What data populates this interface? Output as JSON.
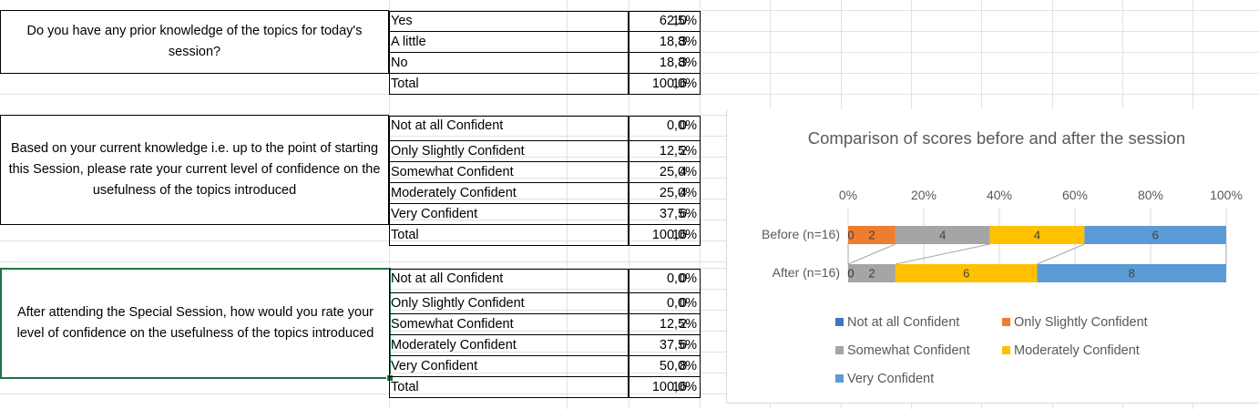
{
  "q1": {
    "question": "Do you have any prior knowledge of the topics for today's session?",
    "rows": [
      {
        "label": "Yes",
        "count": "10",
        "pct": "62,5%"
      },
      {
        "label": "A little",
        "count": "3",
        "pct": "18,8%"
      },
      {
        "label": "No",
        "count": "3",
        "pct": "18,8%"
      },
      {
        "label": "Total",
        "count": "16",
        "pct": "100,0%"
      }
    ]
  },
  "q2": {
    "question": "Based on your current knowledge i.e. up to the point of starting this Session, please rate your current level of confidence on the usefulness of the topics introduced",
    "rows": [
      {
        "label": "Not at all Confident",
        "count": "0",
        "pct": "0,0%"
      },
      {
        "label": "Only Slightly Confident",
        "count": "2",
        "pct": "12,5%"
      },
      {
        "label": "Somewhat Confident",
        "count": "4",
        "pct": "25,0%"
      },
      {
        "label": "Moderately Confident",
        "count": "4",
        "pct": "25,0%"
      },
      {
        "label": "Very Confident",
        "count": "6",
        "pct": "37,5%"
      },
      {
        "label": "Total",
        "count": "16",
        "pct": "100,0%"
      }
    ]
  },
  "q3": {
    "question": "After attending the Special Session, how would you rate your level of confidence on the usefulness of the topics introduced",
    "rows": [
      {
        "label": "Not at all Confident",
        "count": "0",
        "pct": "0,0%"
      },
      {
        "label": "Only Slightly Confident",
        "count": "0",
        "pct": "0,0%"
      },
      {
        "label": "Somewhat Confident",
        "count": "2",
        "pct": "12,5%"
      },
      {
        "label": "Moderately Confident",
        "count": "6",
        "pct": "37,5%"
      },
      {
        "label": "Very Confident",
        "count": "8",
        "pct": "50,0%"
      },
      {
        "label": "Total",
        "count": "16",
        "pct": "100,0%"
      }
    ]
  },
  "chart_data": {
    "type": "bar",
    "orientation": "horizontal",
    "stacking": "percent",
    "title": "Comparison of scores before and after the session",
    "categories": [
      "Before (n=16)",
      "After (n=16)"
    ],
    "xlim": [
      0,
      100
    ],
    "x_ticks": [
      "0%",
      "20%",
      "40%",
      "60%",
      "80%",
      "100%"
    ],
    "grid": true,
    "legend_position": "bottom",
    "series": [
      {
        "name": "Not at all Confident",
        "color": "#4472c4",
        "values": [
          0,
          0
        ]
      },
      {
        "name": "Only Slightly Confident",
        "color": "#ed7d31",
        "values": [
          2,
          0
        ]
      },
      {
        "name": "Somewhat Confident",
        "color": "#a5a5a5",
        "values": [
          4,
          2
        ]
      },
      {
        "name": "Moderately Confident",
        "color": "#ffc000",
        "values": [
          4,
          6
        ]
      },
      {
        "name": "Very Confident",
        "color": "#5b9bd5",
        "values": [
          6,
          8
        ]
      }
    ]
  }
}
